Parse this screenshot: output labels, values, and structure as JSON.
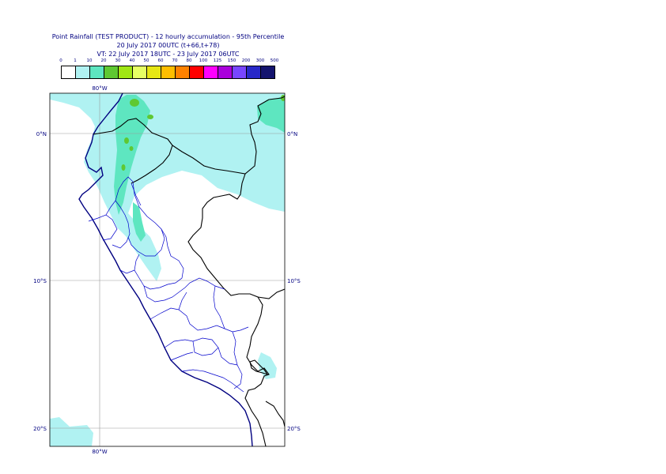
{
  "header": {
    "title_line1": "Point Rainfall (TEST PRODUCT) - 12 hourly accumulation - 95th Percentile",
    "title_line2": "20 July 2017 00UTC (t+66,t+78)",
    "title_line3": "VT: 22 July 2017 18UTC - 23 July 2017 06UTC"
  },
  "legend": {
    "labels": [
      "0",
      "1",
      "10",
      "20",
      "30",
      "40",
      "50",
      "60",
      "70",
      "80",
      "100",
      "125",
      "150",
      "200",
      "300",
      "500"
    ],
    "colors": [
      "#ffffff",
      "#b0f2f2",
      "#5ee6c0",
      "#5fc832",
      "#a0e614",
      "#e6ff64",
      "#e6e614",
      "#ffbe00",
      "#ff8200",
      "#ff0000",
      "#ff00ff",
      "#aa00dc",
      "#7846ff",
      "#2828c8",
      "#14146e"
    ]
  },
  "map": {
    "lon_top": "80°W",
    "lon_bottom": "80°W",
    "lat_labels_left": [
      "0°N",
      "10°S",
      "20°S"
    ],
    "lat_labels_right": [
      "0°N",
      "10°S",
      "20°S"
    ],
    "colors": {
      "frame": "#000000",
      "grid": "#999999",
      "coast": "#000080",
      "border": "#000000",
      "admin": "#0000cc",
      "rain_light": "#b0f2f2",
      "rain_medium": "#5ee6c0",
      "rain_heavy": "#5fc832",
      "rain_peak": "#a0e614"
    }
  }
}
